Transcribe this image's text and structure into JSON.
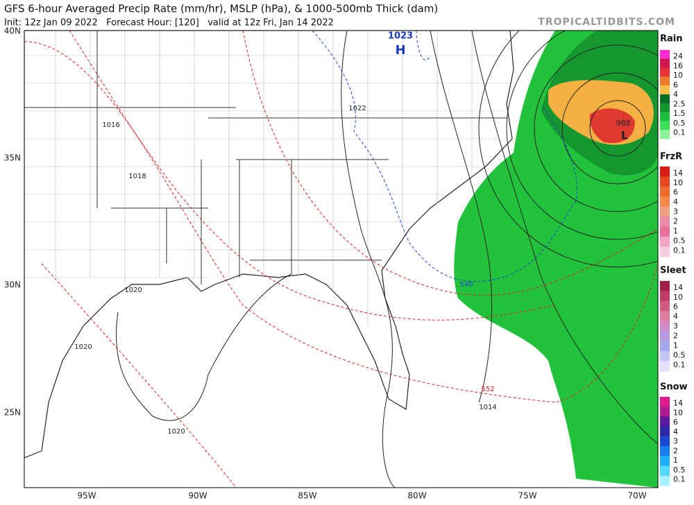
{
  "header": {
    "title": "GFS 6-hour Averaged Precip Rate (mm/hr), MSLP (hPa), & 1000-500mb Thick (dam)",
    "subtitle": "Init: 12z Jan 09 2022   Forecast Hour: [120]   valid at 12z Fri, Jan 14 2022",
    "credit": "TROPICALTIDBITS.COM"
  },
  "map": {
    "lat_labels": [
      "40N",
      "35N",
      "30N",
      "25N"
    ],
    "lon_labels": [
      "95W",
      "90W",
      "85W",
      "80W",
      "75W",
      "70W"
    ],
    "contour_labels": [
      "1023",
      "H",
      "1022",
      "1016",
      "1018",
      "1020",
      "1020",
      "1020",
      "540",
      "552",
      "1014",
      "988",
      "L"
    ]
  },
  "legends": [
    {
      "title": "Rain",
      "labels": [
        "24",
        "16",
        "10",
        "6",
        "4",
        "2.5",
        "1.5",
        "0.5",
        "0.1"
      ],
      "colors": [
        "#ff2bd0",
        "#d0164e",
        "#e8323a",
        "#f07a30",
        "#f6c048",
        "#0a6e28",
        "#12962e",
        "#1cc03c",
        "#3ee05a",
        "#8cf39a"
      ]
    },
    {
      "title": "FrzR",
      "labels": [
        "14",
        "10",
        "6",
        "4",
        "3",
        "2",
        "1",
        "0.5",
        "0.1"
      ],
      "colors": [
        "#d81e14",
        "#e8481e",
        "#f06a2c",
        "#f2894a",
        "#f0a080",
        "#ec8aa8",
        "#e8709a",
        "#f2a6c4",
        "#f8cce0"
      ]
    },
    {
      "title": "Sleet",
      "labels": [
        "14",
        "10",
        "6",
        "4",
        "3",
        "2",
        "1",
        "0.5",
        "0.1"
      ],
      "colors": [
        "#a0204a",
        "#c23a66",
        "#d45a80",
        "#e07ca0",
        "#d08ac8",
        "#b69ae0",
        "#a4a8f0",
        "#c4c4f8",
        "#e4e0fc"
      ]
    },
    {
      "title": "Snow",
      "labels": [
        "14",
        "10",
        "6",
        "4",
        "3",
        "2",
        "1",
        "0.5",
        "0.1"
      ],
      "colors": [
        "#e01a8c",
        "#b01c90",
        "#5a1aa0",
        "#2a2aa8",
        "#1a4ad0",
        "#1a7ef0",
        "#20b0f8",
        "#50d8fc",
        "#a4f0fe"
      ]
    }
  ]
}
